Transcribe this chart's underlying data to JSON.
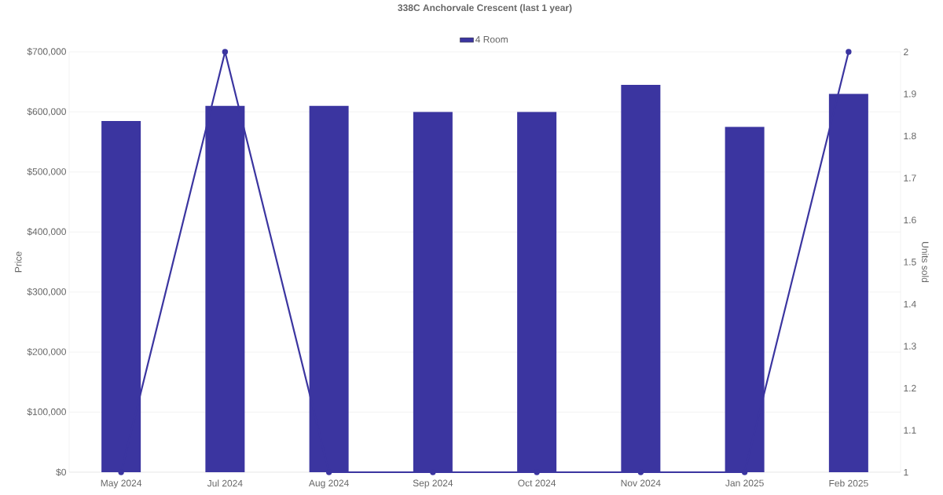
{
  "chart_data": {
    "type": "bar",
    "title": "338C Anchorvale Crescent (last 1 year)",
    "ylabel": "Price",
    "y2label": "Units sold",
    "categories": [
      "May 2024",
      "Jul 2024",
      "Aug 2024",
      "Sep 2024",
      "Oct 2024",
      "Nov 2024",
      "Jan 2025",
      "Feb 2025"
    ],
    "series": [
      {
        "name": "4 Room",
        "color": "#3b35a0",
        "values": [
          585000,
          610000,
          610000,
          600000,
          600000,
          645000,
          575000,
          630000
        ]
      },
      {
        "type": "line",
        "axis": "y2",
        "color": "#3b35a0",
        "values": [
          1,
          2,
          1,
          1,
          1,
          1,
          1,
          2
        ]
      }
    ],
    "ylim": [
      0,
      700000
    ],
    "yticks": [
      {
        "value": 0,
        "label": "$0"
      },
      {
        "value": 100000,
        "label": "$100,000"
      },
      {
        "value": 200000,
        "label": "$200,000"
      },
      {
        "value": 300000,
        "label": "$300,000"
      },
      {
        "value": 400000,
        "label": "$400,000"
      },
      {
        "value": 500000,
        "label": "$500,000"
      },
      {
        "value": 600000,
        "label": "$600,000"
      },
      {
        "value": 700000,
        "label": "$700,000"
      }
    ],
    "y2lim": [
      1,
      2
    ],
    "y2ticks": [
      1,
      1.1,
      1.2,
      1.3,
      1.4,
      1.5,
      1.6,
      1.7,
      1.8,
      1.9,
      2
    ],
    "grid": "y",
    "legend": "top",
    "marker": "circle",
    "line_style": "solid"
  }
}
